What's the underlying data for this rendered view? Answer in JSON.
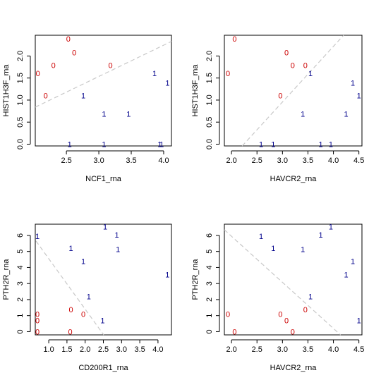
{
  "chart_data": [
    {
      "type": "scatter",
      "xlabel": "NCF1_rna",
      "ylabel": "HIST1H3F_rna",
      "x_ticks": [
        2.5,
        3.0,
        3.5,
        4.0
      ],
      "y_ticks": [
        0.0,
        0.5,
        1.0,
        1.5,
        2.0
      ],
      "xlim": [
        2.02,
        4.12
      ],
      "ylim": [
        -0.04,
        2.47
      ],
      "fit_line": [
        [
          2.02,
          0.84
        ],
        [
          4.12,
          2.33
        ]
      ],
      "points": [
        {
          "x": 2.06,
          "y": 1.61,
          "label": "0"
        },
        {
          "x": 2.18,
          "y": 1.1,
          "label": "0"
        },
        {
          "x": 2.3,
          "y": 1.79,
          "label": "0"
        },
        {
          "x": 2.53,
          "y": 2.39,
          "label": "0"
        },
        {
          "x": 2.62,
          "y": 2.08,
          "label": "0"
        },
        {
          "x": 3.18,
          "y": 1.79,
          "label": "0"
        },
        {
          "x": 2.55,
          "y": 0.0,
          "label": "1"
        },
        {
          "x": 2.76,
          "y": 1.1,
          "label": "1"
        },
        {
          "x": 3.08,
          "y": 0.69,
          "label": "1"
        },
        {
          "x": 3.08,
          "y": 0.0,
          "label": "1"
        },
        {
          "x": 3.46,
          "y": 0.69,
          "label": "1"
        },
        {
          "x": 3.86,
          "y": 1.61,
          "label": "1"
        },
        {
          "x": 3.94,
          "y": 0.0,
          "label": "1"
        },
        {
          "x": 3.97,
          "y": 0.0,
          "label": "1"
        },
        {
          "x": 4.06,
          "y": 1.39,
          "label": "1"
        }
      ]
    },
    {
      "type": "scatter",
      "xlabel": "HAVCR2_rna",
      "ylabel": "HIST1H3F_rna",
      "x_ticks": [
        2.0,
        2.5,
        3.0,
        3.5,
        4.0,
        4.5
      ],
      "y_ticks": [
        0.0,
        0.5,
        1.0,
        1.5,
        2.0
      ],
      "xlim": [
        1.86,
        4.56
      ],
      "ylim": [
        -0.04,
        2.47
      ],
      "fit_line": [
        [
          2.21,
          -0.04
        ],
        [
          4.2,
          2.47
        ]
      ],
      "points": [
        {
          "x": 1.93,
          "y": 1.61,
          "label": "0"
        },
        {
          "x": 2.06,
          "y": 2.39,
          "label": "0"
        },
        {
          "x": 2.96,
          "y": 1.1,
          "label": "0"
        },
        {
          "x": 3.08,
          "y": 2.08,
          "label": "0"
        },
        {
          "x": 3.2,
          "y": 1.79,
          "label": "0"
        },
        {
          "x": 3.45,
          "y": 1.79,
          "label": "0"
        },
        {
          "x": 2.58,
          "y": 0.0,
          "label": "1"
        },
        {
          "x": 2.82,
          "y": 0.0,
          "label": "1"
        },
        {
          "x": 3.4,
          "y": 0.69,
          "label": "1"
        },
        {
          "x": 3.55,
          "y": 1.61,
          "label": "1"
        },
        {
          "x": 3.75,
          "y": 0.0,
          "label": "1"
        },
        {
          "x": 3.95,
          "y": 0.0,
          "label": "1"
        },
        {
          "x": 4.25,
          "y": 0.69,
          "label": "1"
        },
        {
          "x": 4.38,
          "y": 1.39,
          "label": "1"
        },
        {
          "x": 4.5,
          "y": 1.1,
          "label": "1"
        }
      ]
    },
    {
      "type": "scatter",
      "xlabel": "CD200R1_rna",
      "ylabel": "PTH2R_rna",
      "x_ticks": [
        1.0,
        1.5,
        2.0,
        2.5,
        3.0,
        3.5,
        4.0
      ],
      "y_ticks": [
        0,
        1,
        2,
        3,
        4,
        5,
        6
      ],
      "xlim": [
        0.63,
        4.37
      ],
      "ylim": [
        -0.2,
        6.7
      ],
      "fit_line": [
        [
          0.65,
          5.65
        ],
        [
          2.51,
          -0.2
        ]
      ],
      "points": [
        {
          "x": 0.69,
          "y": 0.0,
          "label": "0"
        },
        {
          "x": 0.69,
          "y": 0.69,
          "label": "0"
        },
        {
          "x": 0.69,
          "y": 1.1,
          "label": "0"
        },
        {
          "x": 1.59,
          "y": 0.0,
          "label": "0"
        },
        {
          "x": 1.61,
          "y": 1.39,
          "label": "0"
        },
        {
          "x": 1.95,
          "y": 1.1,
          "label": "0"
        },
        {
          "x": 0.69,
          "y": 5.95,
          "label": "1"
        },
        {
          "x": 1.61,
          "y": 5.2,
          "label": "1"
        },
        {
          "x": 1.95,
          "y": 4.4,
          "label": "1"
        },
        {
          "x": 2.1,
          "y": 2.2,
          "label": "1"
        },
        {
          "x": 2.48,
          "y": 0.69,
          "label": "1"
        },
        {
          "x": 2.55,
          "y": 6.55,
          "label": "1"
        },
        {
          "x": 2.87,
          "y": 6.05,
          "label": "1"
        },
        {
          "x": 2.9,
          "y": 5.15,
          "label": "1"
        },
        {
          "x": 4.26,
          "y": 3.55,
          "label": "1"
        }
      ]
    },
    {
      "type": "scatter",
      "xlabel": "HAVCR2_rna",
      "ylabel": "PTH2R_rna",
      "x_ticks": [
        2.0,
        2.5,
        3.0,
        3.5,
        4.0,
        4.5
      ],
      "y_ticks": [
        0,
        1,
        2,
        3,
        4,
        5,
        6
      ],
      "xlim": [
        1.86,
        4.56
      ],
      "ylim": [
        -0.2,
        6.7
      ],
      "fit_line": [
        [
          1.86,
          6.35
        ],
        [
          4.14,
          -0.2
        ]
      ],
      "points": [
        {
          "x": 1.93,
          "y": 1.1,
          "label": "0"
        },
        {
          "x": 2.06,
          "y": 0.0,
          "label": "0"
        },
        {
          "x": 2.96,
          "y": 1.1,
          "label": "0"
        },
        {
          "x": 3.08,
          "y": 0.69,
          "label": "0"
        },
        {
          "x": 3.2,
          "y": 0.0,
          "label": "0"
        },
        {
          "x": 3.45,
          "y": 1.39,
          "label": "0"
        },
        {
          "x": 2.58,
          "y": 5.95,
          "label": "1"
        },
        {
          "x": 2.82,
          "y": 5.2,
          "label": "1"
        },
        {
          "x": 3.4,
          "y": 5.15,
          "label": "1"
        },
        {
          "x": 3.55,
          "y": 2.2,
          "label": "1"
        },
        {
          "x": 3.75,
          "y": 6.05,
          "label": "1"
        },
        {
          "x": 3.95,
          "y": 6.55,
          "label": "1"
        },
        {
          "x": 4.25,
          "y": 3.55,
          "label": "1"
        },
        {
          "x": 4.38,
          "y": 4.4,
          "label": "1"
        },
        {
          "x": 4.5,
          "y": 0.69,
          "label": "1"
        }
      ]
    }
  ],
  "colors": {
    "label_0": "#cc0000",
    "label_1": "#00008b",
    "fit_line": "#c8c8c8",
    "axis": "#000000"
  }
}
